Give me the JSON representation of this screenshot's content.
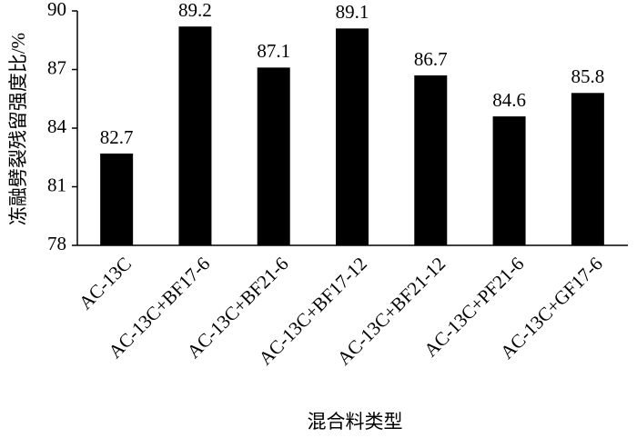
{
  "chart_data": {
    "type": "bar",
    "x_label": "混合料类型",
    "y_label": "冻融劈裂残留强度比/%",
    "categories": [
      "AC-13C",
      "AC-13C+BF17-6",
      "AC-13C+BF21-6",
      "AC-13C+BF17-12",
      "AC-13C+BF21-12",
      "AC-13C+PF21-6",
      "AC-13C+GF17-6"
    ],
    "values": [
      82.7,
      89.2,
      87.1,
      89.1,
      86.7,
      84.6,
      85.8
    ],
    "color": "#000000",
    "ylim": [
      78,
      90
    ],
    "yticks": [
      78,
      81,
      84,
      87,
      90
    ],
    "grid": false
  }
}
